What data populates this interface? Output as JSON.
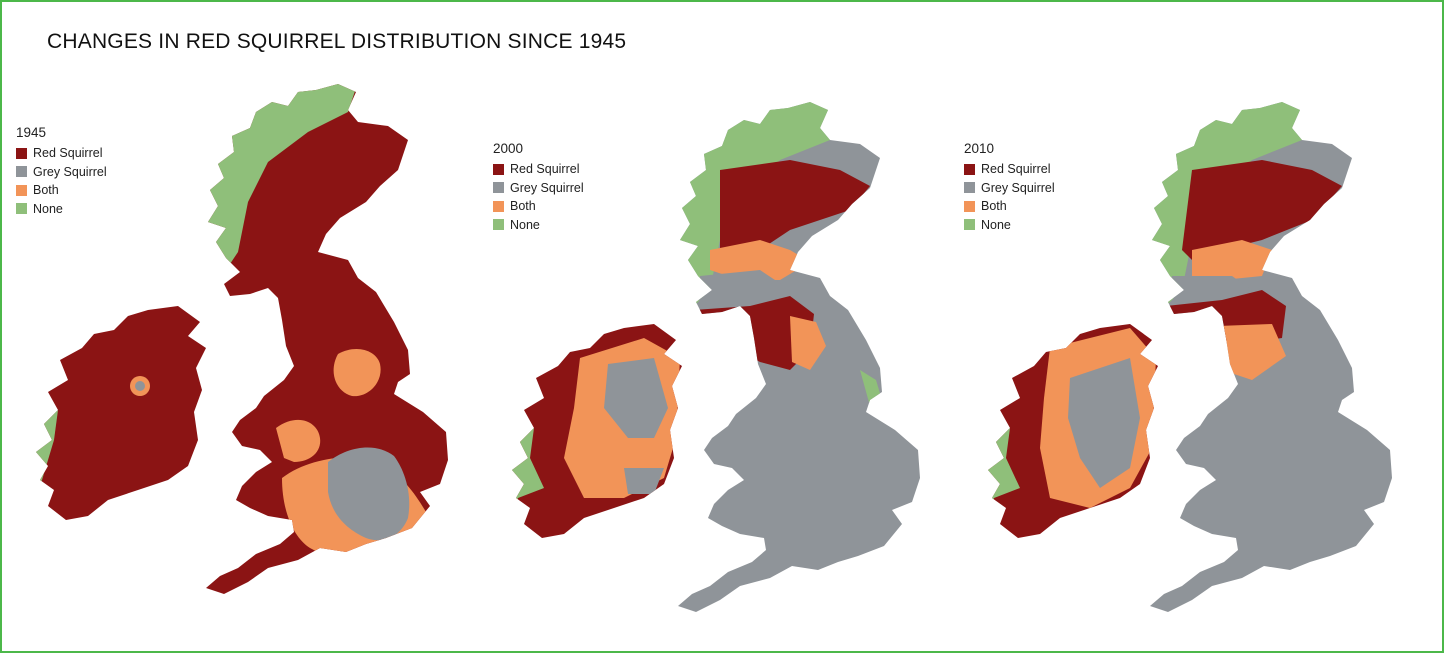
{
  "title": "CHANGES IN RED SQUIRREL DISTRIBUTION SINCE 1945",
  "colors": {
    "red_squirrel": "#8b1414",
    "grey_squirrel": "#8f9499",
    "both": "#f29458",
    "none": "#8fbf7a",
    "frame": "#4cb84a"
  },
  "categories": [
    "Red Squirrel",
    "Grey Squirrel",
    "Both",
    "None"
  ],
  "maps": [
    {
      "year": "1945",
      "legend": [
        "Red Squirrel",
        "Grey Squirrel",
        "Both",
        "None"
      ]
    },
    {
      "year": "2000",
      "legend": [
        "Red Squirrel",
        "Grey Squirrel",
        "Both",
        "None"
      ]
    },
    {
      "year": "2010",
      "legend": [
        "Red Squirrel",
        "Grey Squirrel",
        "Both",
        "None"
      ]
    }
  ]
}
